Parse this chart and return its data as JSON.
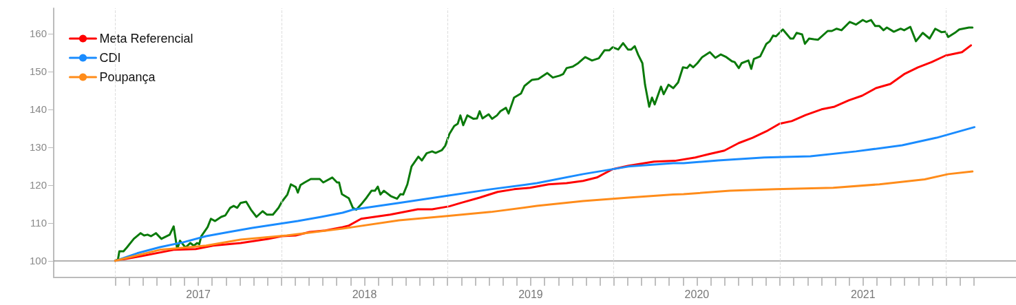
{
  "chart_data": {
    "type": "line",
    "xlim": [
      2016.63,
      2022.42
    ],
    "ylim": [
      95.6,
      166.7
    ],
    "yticks": [
      100,
      110,
      120,
      130,
      140,
      150,
      160
    ],
    "xticks": [
      {
        "value": 2017,
        "label": null
      },
      {
        "value": 2017.083,
        "label": null
      },
      {
        "value": 2017.167,
        "label": null
      },
      {
        "value": 2017.25,
        "label": null
      },
      {
        "value": 2017.333,
        "label": null
      },
      {
        "value": 2017.417,
        "label": null
      },
      {
        "value": 2017.5,
        "label": "2017"
      },
      {
        "value": 2017.583,
        "label": null
      },
      {
        "value": 2017.667,
        "label": null
      },
      {
        "value": 2017.75,
        "label": null
      },
      {
        "value": 2017.833,
        "label": null
      },
      {
        "value": 2017.917,
        "label": null
      },
      {
        "value": 2018,
        "label": null
      },
      {
        "value": 2018.083,
        "label": null
      },
      {
        "value": 2018.167,
        "label": null
      },
      {
        "value": 2018.25,
        "label": null
      },
      {
        "value": 2018.333,
        "label": null
      },
      {
        "value": 2018.417,
        "label": null
      },
      {
        "value": 2018.5,
        "label": "2018"
      },
      {
        "value": 2018.583,
        "label": null
      },
      {
        "value": 2018.667,
        "label": null
      },
      {
        "value": 2018.75,
        "label": null
      },
      {
        "value": 2018.833,
        "label": null
      },
      {
        "value": 2018.917,
        "label": null
      },
      {
        "value": 2019,
        "label": null
      },
      {
        "value": 2019.083,
        "label": null
      },
      {
        "value": 2019.167,
        "label": null
      },
      {
        "value": 2019.25,
        "label": null
      },
      {
        "value": 2019.333,
        "label": null
      },
      {
        "value": 2019.417,
        "label": null
      },
      {
        "value": 2019.5,
        "label": "2019"
      },
      {
        "value": 2019.583,
        "label": null
      },
      {
        "value": 2019.667,
        "label": null
      },
      {
        "value": 2019.75,
        "label": null
      },
      {
        "value": 2019.833,
        "label": null
      },
      {
        "value": 2019.917,
        "label": null
      },
      {
        "value": 2020,
        "label": null
      },
      {
        "value": 2020.083,
        "label": null
      },
      {
        "value": 2020.167,
        "label": null
      },
      {
        "value": 2020.25,
        "label": null
      },
      {
        "value": 2020.333,
        "label": null
      },
      {
        "value": 2020.417,
        "label": null
      },
      {
        "value": 2020.5,
        "label": "2020"
      },
      {
        "value": 2020.583,
        "label": null
      },
      {
        "value": 2020.667,
        "label": null
      },
      {
        "value": 2020.75,
        "label": null
      },
      {
        "value": 2020.833,
        "label": null
      },
      {
        "value": 2020.917,
        "label": null
      },
      {
        "value": 2021,
        "label": null
      },
      {
        "value": 2021.083,
        "label": null
      },
      {
        "value": 2021.167,
        "label": null
      },
      {
        "value": 2021.25,
        "label": null
      },
      {
        "value": 2021.333,
        "label": null
      },
      {
        "value": 2021.417,
        "label": null
      },
      {
        "value": 2021.5,
        "label": "2021"
      },
      {
        "value": 2021.583,
        "label": null
      },
      {
        "value": 2021.667,
        "label": null
      },
      {
        "value": 2021.75,
        "label": null
      },
      {
        "value": 2021.833,
        "label": null
      },
      {
        "value": 2021.917,
        "label": null
      },
      {
        "value": 2022,
        "label": null
      },
      {
        "value": 2022.083,
        "label": null
      },
      {
        "value": 2022.167,
        "label": null
      }
    ],
    "legend": "top left",
    "marker": "none",
    "line_style": "solid",
    "ref_lines": [
      {
        "axis": "y",
        "value": 100,
        "label": null,
        "color": "#999999",
        "line_style": "solid"
      },
      {
        "axis": "x",
        "value": 2017,
        "label": null,
        "color": "#dddddd",
        "line_style": "dashed"
      },
      {
        "axis": "x",
        "value": 2018,
        "label": null,
        "color": "#dddddd",
        "line_style": "dashed"
      },
      {
        "axis": "x",
        "value": 2019,
        "label": null,
        "color": "#dddddd",
        "line_style": "dashed"
      },
      {
        "axis": "x",
        "value": 2020,
        "label": null,
        "color": "#dddddd",
        "line_style": "dashed"
      },
      {
        "axis": "x",
        "value": 2021,
        "label": null,
        "color": "#dddddd",
        "line_style": "dashed"
      },
      {
        "axis": "x",
        "value": 2022,
        "label": null,
        "color": "#dddddd",
        "line_style": "dashed"
      }
    ],
    "series": [
      {
        "color": "#0a7a0a",
        "x": [
          2017.0,
          2017.017,
          2017.025,
          2017.05,
          2017.07,
          2017.112,
          2017.153,
          2017.174,
          2017.195,
          2017.216,
          2017.245,
          2017.278,
          2017.328,
          2017.352,
          2017.373,
          2017.39,
          2017.423,
          2017.452,
          2017.473,
          2017.493,
          2017.506,
          2017.518,
          2017.556,
          2017.576,
          2017.601,
          2017.638,
          2017.663,
          2017.692,
          2017.713,
          2017.734,
          2017.755,
          2017.788,
          2017.817,
          2017.85,
          2017.887,
          2017.912,
          2017.949,
          2017.983,
          2018.003,
          2018.036,
          2018.057,
          2018.086,
          2018.099,
          2018.115,
          2018.14,
          2018.177,
          2018.231,
          2018.252,
          2018.306,
          2018.335,
          2018.347,
          2018.364,
          2018.406,
          2018.43,
          2018.451,
          2018.48,
          2018.513,
          2018.542,
          2018.563,
          2018.58,
          2018.596,
          2018.617,
          2018.658,
          2018.696,
          2018.716,
          2018.733,
          2018.758,
          2018.783,
          2018.824,
          2018.845,
          2018.874,
          2018.907,
          2018.928,
          2018.965,
          2018.986,
          2019.011,
          2019.04,
          2019.061,
          2019.077,
          2019.094,
          2019.119,
          2019.156,
          2019.177,
          2019.193,
          2019.21,
          2019.247,
          2019.268,
          2019.297,
          2019.318,
          2019.351,
          2019.367,
          2019.4,
          2019.442,
          2019.463,
          2019.508,
          2019.546,
          2019.6,
          2019.633,
          2019.674,
          2019.695,
          2019.716,
          2019.753,
          2019.786,
          2019.828,
          2019.869,
          2019.91,
          2019.944,
          2019.973,
          2019.993,
          2020.027,
          2020.056,
          2020.085,
          2020.105,
          2020.126,
          2020.147,
          2020.172,
          2020.188,
          2020.213,
          2020.23,
          2020.246,
          2020.284,
          2020.3,
          2020.329,
          2020.358,
          2020.387,
          2020.416,
          2020.441,
          2020.458,
          2020.478,
          2020.503,
          2020.532,
          2020.578,
          2020.611,
          2020.644,
          2020.677,
          2020.711,
          2020.727,
          2020.752,
          2020.769,
          2020.81,
          2020.827,
          2020.843,
          2020.881,
          2020.918,
          2020.939,
          2020.959,
          2020.976,
          2021.017,
          2021.063,
          2021.08,
          2021.1,
          2021.133,
          2021.15,
          2021.175,
          2021.204,
          2021.229,
          2021.287,
          2021.312,
          2021.341,
          2021.37,
          2021.42,
          2021.457,
          2021.498,
          2021.519,
          2021.548,
          2021.573,
          2021.598,
          2021.623,
          2021.643,
          2021.685,
          2021.726,
          2021.747,
          2021.784,
          2021.818,
          2021.859,
          2021.9,
          2021.934,
          2021.971,
          2021.996,
          2022.012,
          2022.058,
          2022.079,
          2022.137,
          2022.158
        ],
        "values": [
          100.0,
          100.4,
          102.5,
          102.5,
          103.5,
          105.8,
          107.3,
          106.7,
          106.9,
          106.5,
          107.3,
          105.8,
          106.9,
          109.1,
          103.1,
          105.3,
          103.5,
          104.7,
          104.0,
          104.7,
          104.4,
          106.5,
          108.9,
          111.1,
          110.5,
          111.6,
          112.0,
          114.0,
          114.5,
          114.0,
          115.3,
          115.6,
          113.5,
          111.6,
          113.1,
          112.2,
          112.2,
          114.0,
          115.6,
          117.5,
          120.2,
          119.5,
          118.0,
          120.0,
          120.7,
          121.6,
          121.6,
          120.7,
          122.0,
          120.7,
          120.7,
          117.6,
          116.5,
          114.0,
          113.5,
          114.9,
          116.7,
          118.5,
          118.5,
          119.6,
          117.5,
          118.5,
          117.1,
          116.4,
          117.6,
          117.5,
          120.2,
          124.9,
          127.5,
          126.5,
          128.4,
          128.9,
          128.5,
          129.2,
          130.4,
          133.5,
          135.6,
          136.2,
          138.4,
          135.8,
          138.4,
          137.5,
          137.6,
          139.5,
          137.6,
          138.7,
          137.5,
          138.4,
          139.5,
          140.4,
          138.9,
          143.1,
          144.2,
          146.2,
          147.8,
          148.0,
          149.6,
          148.4,
          148.9,
          149.3,
          150.9,
          151.3,
          152.2,
          153.8,
          152.9,
          153.5,
          155.6,
          155.6,
          156.4,
          155.8,
          157.5,
          155.8,
          155.8,
          156.7,
          154.4,
          152.2,
          146.5,
          140.7,
          143.1,
          141.3,
          146.0,
          144.0,
          146.5,
          145.6,
          147.1,
          151.1,
          150.9,
          151.8,
          151.1,
          152.2,
          153.8,
          155.1,
          153.6,
          154.5,
          153.8,
          152.7,
          152.5,
          150.9,
          152.2,
          152.9,
          150.7,
          153.3,
          154.0,
          157.3,
          158.0,
          159.5,
          159.3,
          161.1,
          158.7,
          158.7,
          160.2,
          159.8,
          157.3,
          158.7,
          158.5,
          158.4,
          160.7,
          160.7,
          161.3,
          160.9,
          163.1,
          162.4,
          163.6,
          163.1,
          163.6,
          162.0,
          162.0,
          160.9,
          161.6,
          160.5,
          161.3,
          160.9,
          161.8,
          158.0,
          160.2,
          158.7,
          161.3,
          160.4,
          160.5,
          159.1,
          160.4,
          161.1,
          161.6,
          161.6
        ]
      },
      {
        "name": "Meta Referencial",
        "color": "#ff0000",
        "x": [
          2017.0,
          2017.162,
          2017.352,
          2017.485,
          2017.589,
          2017.755,
          2017.92,
          2018.003,
          2018.086,
          2018.169,
          2018.265,
          2018.368,
          2018.406,
          2018.48,
          2018.654,
          2018.82,
          2018.907,
          2019.011,
          2019.081,
          2019.193,
          2019.301,
          2019.4,
          2019.496,
          2019.608,
          2019.716,
          2019.815,
          2019.898,
          2019.993,
          2020.089,
          2020.242,
          2020.367,
          2020.491,
          2020.574,
          2020.665,
          2020.752,
          2020.835,
          2020.918,
          2020.997,
          2021.071,
          2021.154,
          2021.25,
          2021.328,
          2021.415,
          2021.494,
          2021.577,
          2021.664,
          2021.747,
          2021.83,
          2021.913,
          2021.996,
          2022.095,
          2022.149
        ],
        "values": [
          100.0,
          101.3,
          102.9,
          103.1,
          104.0,
          104.7,
          105.8,
          106.5,
          106.7,
          107.6,
          108.0,
          108.9,
          109.3,
          111.1,
          112.2,
          113.6,
          113.6,
          114.4,
          115.3,
          116.7,
          118.2,
          118.9,
          119.3,
          120.2,
          120.5,
          121.1,
          122.0,
          124.2,
          125.1,
          126.2,
          126.4,
          127.3,
          128.2,
          129.1,
          131.1,
          132.5,
          134.2,
          136.2,
          136.9,
          138.5,
          140.0,
          140.7,
          142.4,
          143.6,
          145.6,
          146.7,
          149.3,
          151.1,
          152.5,
          154.2,
          155.1,
          156.9
        ]
      },
      {
        "name": "CDI",
        "color": "#1a8cff",
        "x": [
          2017.0,
          2017.133,
          2017.269,
          2017.41,
          2017.547,
          2017.684,
          2017.825,
          2017.962,
          2018.099,
          2018.24,
          2018.368,
          2018.43,
          2018.708,
          2018.986,
          2019.26,
          2019.537,
          2019.815,
          2020.089,
          2020.358,
          2020.42,
          2020.628,
          2020.905,
          2021.183,
          2021.457,
          2021.735,
          2021.942,
          2022.17
        ],
        "values": [
          100.0,
          102.0,
          103.6,
          104.9,
          106.5,
          107.6,
          108.7,
          109.6,
          110.5,
          111.6,
          112.7,
          113.5,
          115.3,
          117.1,
          118.9,
          120.5,
          122.9,
          124.9,
          125.8,
          125.8,
          126.5,
          127.3,
          127.6,
          128.9,
          130.5,
          132.5,
          135.3
        ]
      },
      {
        "name": "Poupança",
        "color": "#ff8c1a",
        "x": [
          2017.0,
          2017.269,
          2017.547,
          2017.755,
          2018.032,
          2018.368,
          2018.43,
          2018.708,
          2018.986,
          2019.26,
          2019.537,
          2019.815,
          2020.089,
          2020.358,
          2020.42,
          2020.698,
          2020.976,
          2021.32,
          2021.598,
          2021.871,
          2022.012,
          2022.158
        ],
        "values": [
          100.0,
          102.9,
          104.0,
          105.6,
          106.7,
          108.5,
          108.9,
          110.7,
          111.8,
          112.9,
          114.5,
          115.8,
          116.7,
          117.5,
          117.6,
          118.5,
          118.9,
          119.3,
          120.2,
          121.5,
          122.9,
          123.6
        ]
      }
    ]
  }
}
